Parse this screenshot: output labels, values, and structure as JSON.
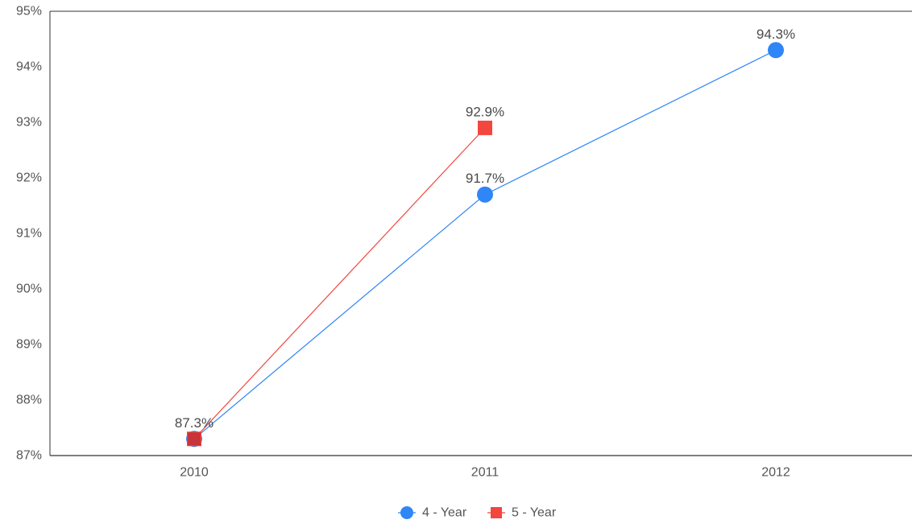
{
  "chart_data": {
    "type": "line",
    "categories": [
      "2010",
      "2011",
      "2012"
    ],
    "series": [
      {
        "name": "4 - Year",
        "values": [
          87.3,
          91.7,
          94.3
        ],
        "labels": [
          "87.3%",
          "91.7%",
          "94.3%"
        ],
        "color": "#2f86f6",
        "marker": "circle"
      },
      {
        "name": "5 - Year",
        "values": [
          87.3,
          92.9,
          null
        ],
        "labels": [
          "87.3%",
          "92.9%",
          null
        ],
        "color": "#f2463f",
        "marker": "square"
      }
    ],
    "ylim": [
      87,
      95
    ],
    "yticks": [
      87,
      88,
      89,
      90,
      91,
      92,
      93,
      94,
      95
    ],
    "ytick_labels": [
      "87%",
      "88%",
      "89%",
      "90%",
      "91%",
      "92%",
      "93%",
      "94%",
      "95%"
    ],
    "title": "",
    "xlabel": "",
    "ylabel": "",
    "grid": false,
    "legend_position": "bottom-center"
  }
}
